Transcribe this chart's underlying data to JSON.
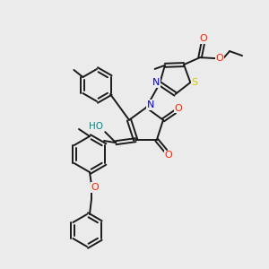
{
  "background_color": "#ebebeb",
  "bond_color": "#1a1a1a",
  "atom_colors": {
    "N": "#0000dd",
    "O": "#ff2200",
    "S": "#cccc00",
    "HO": "#008888",
    "C": "#1a1a1a"
  },
  "figsize": [
    3.0,
    3.0
  ],
  "dpi": 100
}
